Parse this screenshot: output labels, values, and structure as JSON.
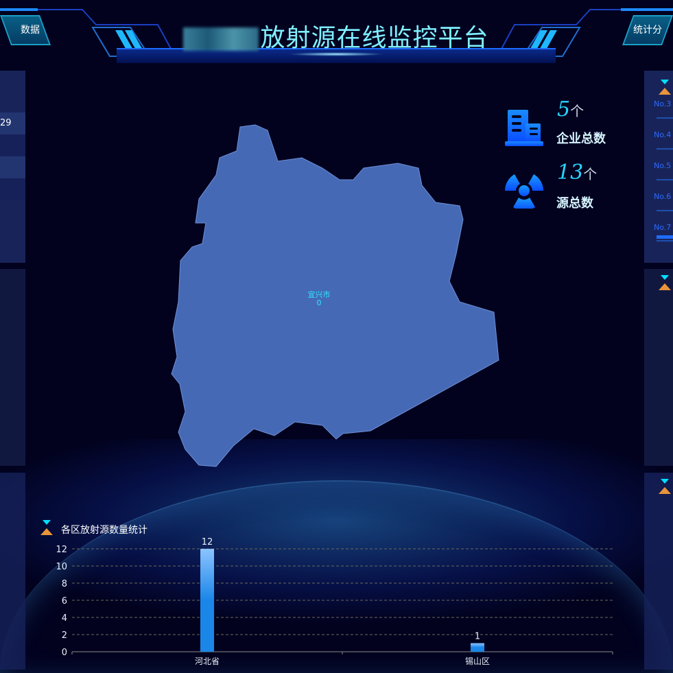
{
  "header": {
    "title": "放射源在线监控平台",
    "left_tab": "数据",
    "right_tab": "统计分"
  },
  "left_panel": {
    "visible_value": "29"
  },
  "stats": [
    {
      "icon": "building-icon",
      "value": "5",
      "unit": "个",
      "label": "企业总数"
    },
    {
      "icon": "radiation-icon",
      "value": "13",
      "unit": "个",
      "label": "源总数"
    }
  ],
  "map": {
    "region_label": "宜兴市",
    "region_value": "0",
    "fill": "#4569b5"
  },
  "right_panel": {
    "rank_items": [
      "No.3",
      "No.4",
      "No.5",
      "No.6",
      "No.7"
    ]
  },
  "colors": {
    "accent": "#2ad3ff",
    "bar_top": "#8cc4ff",
    "bar_bottom": "#1a86e8",
    "hourglass_top": "#00e0ff",
    "hourglass_bottom": "#e8943a"
  },
  "chart_data": {
    "type": "bar",
    "title": "各区放射源数量统计",
    "categories": [
      "河北省",
      "锡山区"
    ],
    "values": [
      12,
      1
    ],
    "ylim": [
      0,
      12
    ],
    "yticks": [
      "0",
      "2",
      "4",
      "6",
      "8",
      "10",
      "12"
    ],
    "grid": true,
    "data_labels": true
  }
}
